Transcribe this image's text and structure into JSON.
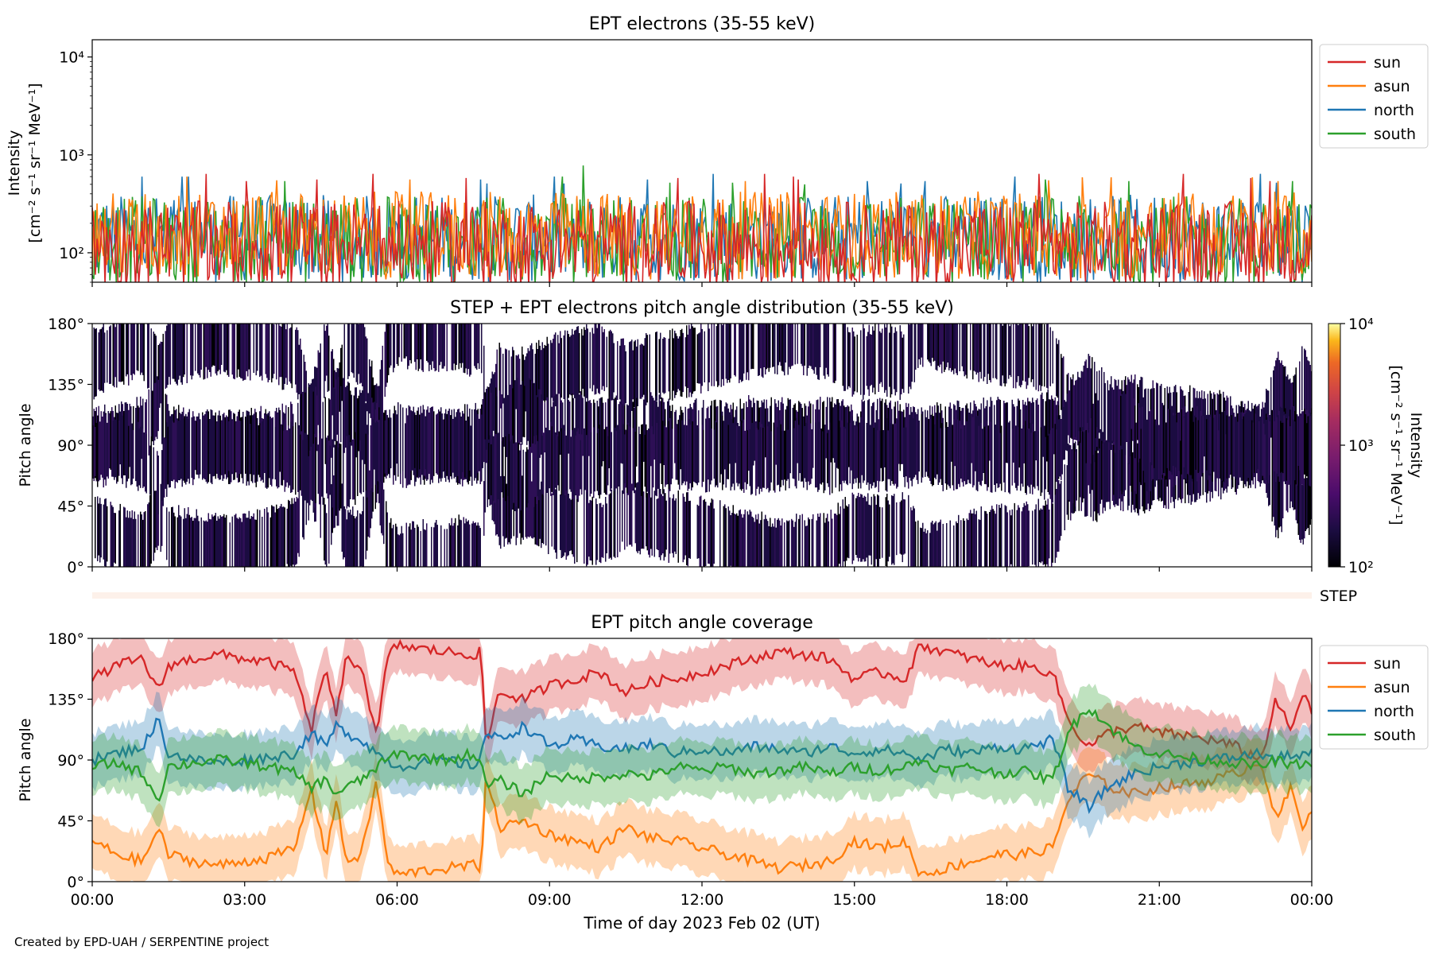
{
  "figure": {
    "credit": "Created by EPD-UAH / SERPENTINE project"
  },
  "chart_data": [
    {
      "type": "line",
      "title": "EPT electrons (35-55 keV)",
      "ylabel_line1": "Intensity",
      "ylabel_line2": "[cm⁻² s⁻¹ sr⁻¹ MeV⁻¹]",
      "yscale": "log",
      "ylim": [
        50,
        15000
      ],
      "yticks": [
        100,
        1000,
        10000
      ],
      "ytick_labels": [
        "10²",
        "10³",
        "10⁴"
      ],
      "xlim_hours": [
        0,
        24
      ],
      "legend_position": "upper right, outside",
      "series": [
        {
          "name": "sun",
          "color": "#d62728",
          "median": 120,
          "peak_values": [
            700,
            640,
            600,
            580,
            560,
            540
          ]
        },
        {
          "name": "asun",
          "color": "#ff7f0e",
          "median": 150,
          "peak_values": [
            620,
            600,
            590,
            560,
            550,
            540
          ]
        },
        {
          "name": "north",
          "color": "#1f77b4",
          "median": 140,
          "peak_values": [
            640,
            600,
            560,
            540,
            520,
            510
          ]
        },
        {
          "name": "south",
          "color": "#2ca02c",
          "median": 135,
          "peak_values": [
            780,
            600,
            560,
            540,
            520,
            500
          ]
        }
      ]
    },
    {
      "type": "heatmap",
      "title": "STEP + EPT electrons pitch angle distribution (35-55 keV)",
      "ylabel": "Pitch angle",
      "ylim": [
        0,
        180
      ],
      "yticks": [
        0,
        45,
        90,
        135,
        180
      ],
      "ytick_labels": [
        "0°",
        "45°",
        "90°",
        "135°",
        "180°"
      ],
      "xlim_hours": [
        0,
        24
      ],
      "colorbar": {
        "label_line1": "Intensity",
        "label_line2": "[cm⁻² s⁻¹ sr⁻¹ MeV⁻¹]",
        "scale": "log",
        "range": [
          100,
          10000
        ],
        "ticks": [
          100,
          1000,
          10000
        ],
        "tick_labels": [
          "10²",
          "10³",
          "10⁴"
        ],
        "colormap": "inferno"
      }
    },
    {
      "type": "heatmap",
      "label": "STEP",
      "xlim_hours": [
        0,
        24
      ],
      "fill_color": "#fdf1ea"
    },
    {
      "type": "line",
      "title": "EPT pitch angle coverage",
      "ylabel": "Pitch angle",
      "xlabel": "Time of day 2023 Feb 02 (UT)",
      "ylim": [
        0,
        180
      ],
      "yticks": [
        0,
        45,
        90,
        135,
        180
      ],
      "ytick_labels": [
        "0°",
        "45°",
        "90°",
        "135°",
        "180°"
      ],
      "xlim_hours": [
        0,
        24
      ],
      "xticks_hours": [
        0,
        3,
        6,
        9,
        12,
        15,
        18,
        21,
        24
      ],
      "xtick_labels": [
        "00:00",
        "03:00",
        "06:00",
        "09:00",
        "12:00",
        "15:00",
        "18:00",
        "21:00",
        "00:00"
      ],
      "legend_position": "upper right, outside",
      "band_halfwidth_deg": 20,
      "series": [
        {
          "name": "sun",
          "color": "#d62728",
          "x": [
            0,
            0.5,
            1,
            1.3,
            1.5,
            2,
            2.5,
            3,
            3.5,
            4,
            4.3,
            4.6,
            4.8,
            5.0,
            5.3,
            5.6,
            5.8,
            6.0,
            6.5,
            7.0,
            7.5,
            7.65,
            7.75,
            8.0,
            8.5,
            9.0,
            9.5,
            10,
            10.5,
            11,
            11.5,
            12,
            12.5,
            13,
            13.5,
            14,
            14.5,
            15,
            15.5,
            16,
            16.3,
            16.8,
            17.3,
            17.8,
            18.3,
            18.9,
            19.2,
            19.6,
            20,
            20.5,
            21,
            21.5,
            22,
            22.5,
            23,
            23.3,
            23.6,
            23.8,
            24
          ],
          "y": [
            150,
            160,
            165,
            140,
            160,
            165,
            168,
            165,
            162,
            155,
            110,
            160,
            120,
            165,
            160,
            105,
            165,
            175,
            172,
            170,
            168,
            170,
            100,
            140,
            135,
            145,
            150,
            155,
            140,
            148,
            150,
            155,
            160,
            165,
            170,
            168,
            165,
            150,
            155,
            150,
            175,
            170,
            165,
            160,
            160,
            155,
            120,
            100,
            110,
            115,
            110,
            108,
            105,
            100,
            90,
            135,
            110,
            140,
            125
          ]
        },
        {
          "name": "asun",
          "color": "#ff7f0e",
          "x": [
            0,
            0.5,
            1,
            1.3,
            1.5,
            2,
            2.5,
            3,
            3.5,
            4,
            4.3,
            4.6,
            4.8,
            5.0,
            5.3,
            5.6,
            5.8,
            6.0,
            6.5,
            7.0,
            7.5,
            7.65,
            7.75,
            8.0,
            8.5,
            9.0,
            9.5,
            10,
            10.5,
            11,
            11.5,
            12,
            12.5,
            13,
            13.5,
            14,
            14.5,
            15,
            15.5,
            16,
            16.3,
            16.8,
            17.3,
            17.8,
            18.3,
            18.9,
            19.2,
            19.6,
            20,
            20.5,
            21,
            21.5,
            22,
            22.5,
            23,
            23.3,
            23.6,
            23.8,
            24
          ],
          "y": [
            30,
            20,
            15,
            40,
            20,
            15,
            12,
            15,
            18,
            25,
            70,
            20,
            60,
            15,
            20,
            75,
            15,
            5,
            8,
            10,
            12,
            10,
            80,
            40,
            45,
            35,
            30,
            25,
            40,
            32,
            30,
            25,
            20,
            15,
            10,
            12,
            15,
            30,
            25,
            30,
            5,
            10,
            15,
            20,
            20,
            25,
            60,
            80,
            70,
            65,
            70,
            72,
            75,
            80,
            90,
            45,
            70,
            40,
            55
          ]
        },
        {
          "name": "north",
          "color": "#1f77b4",
          "x": [
            0,
            0.5,
            1,
            1.3,
            1.5,
            2,
            2.5,
            3,
            3.5,
            4,
            4.3,
            4.6,
            4.8,
            5.0,
            5.3,
            5.6,
            5.8,
            6.0,
            6.5,
            7.0,
            7.5,
            7.65,
            7.75,
            8.0,
            8.5,
            9.0,
            9.5,
            10,
            10.5,
            11,
            11.5,
            12,
            12.5,
            13,
            13.5,
            14,
            14.5,
            15,
            15.5,
            16,
            16.3,
            16.8,
            17.3,
            17.8,
            18.3,
            18.9,
            19.2,
            19.6,
            20,
            20.5,
            21,
            21.5,
            22,
            22.5,
            23,
            23.3,
            23.6,
            23.8,
            24
          ],
          "y": [
            90,
            95,
            100,
            120,
            95,
            90,
            88,
            90,
            92,
            95,
            110,
            100,
            115,
            110,
            105,
            95,
            90,
            85,
            88,
            90,
            85,
            95,
            110,
            105,
            115,
            100,
            105,
            100,
            98,
            102,
            95,
            98,
            95,
            100,
            98,
            95,
            100,
            95,
            98,
            95,
            90,
            98,
            95,
            100,
            98,
            105,
            70,
            55,
            70,
            80,
            85,
            88,
            90,
            92,
            95,
            90,
            95,
            92,
            95
          ]
        },
        {
          "name": "south",
          "color": "#2ca02c",
          "x": [
            0,
            0.5,
            1,
            1.3,
            1.5,
            2,
            2.5,
            3,
            3.5,
            4,
            4.3,
            4.6,
            4.8,
            5.0,
            5.3,
            5.6,
            5.8,
            6.0,
            6.5,
            7.0,
            7.5,
            7.65,
            7.75,
            8.0,
            8.5,
            9.0,
            9.5,
            10,
            10.5,
            11,
            11.5,
            12,
            12.5,
            13,
            13.5,
            14,
            14.5,
            15,
            15.5,
            16,
            16.3,
            16.8,
            17.3,
            17.8,
            18.3,
            18.9,
            19.2,
            19.6,
            20,
            20.5,
            21,
            21.5,
            22,
            22.5,
            23,
            23.3,
            23.6,
            23.8,
            24
          ],
          "y": [
            85,
            88,
            80,
            60,
            85,
            88,
            90,
            88,
            85,
            80,
            70,
            75,
            65,
            70,
            75,
            85,
            90,
            95,
            92,
            90,
            95,
            88,
            70,
            75,
            65,
            80,
            75,
            78,
            80,
            78,
            85,
            82,
            85,
            80,
            82,
            85,
            80,
            85,
            82,
            85,
            90,
            82,
            85,
            80,
            82,
            75,
            110,
            130,
            115,
            100,
            95,
            92,
            90,
            88,
            85,
            90,
            85,
            88,
            85
          ]
        }
      ]
    }
  ]
}
